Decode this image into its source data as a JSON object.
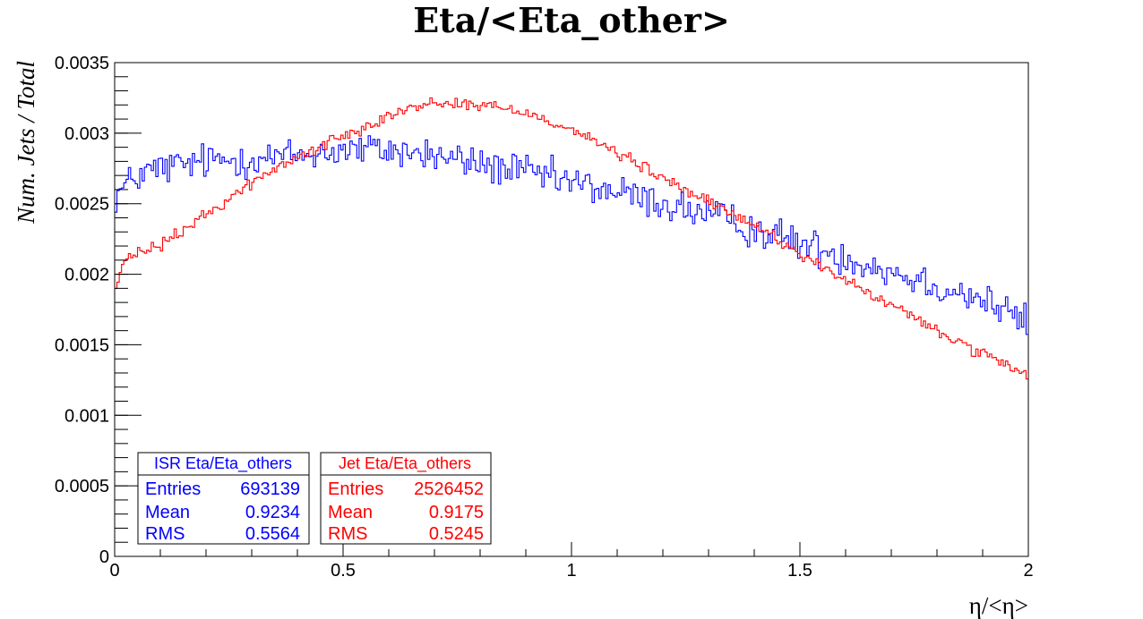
{
  "chart_data": {
    "type": "line",
    "title": "Eta/<Eta_other>",
    "xlabel": "η/<η>",
    "ylabel": "Num. Jets / Total",
    "xlim": [
      0,
      2
    ],
    "ylim": [
      0,
      0.0035
    ],
    "x_ticks": [
      {
        "value": 0,
        "label": "0"
      },
      {
        "value": 0.5,
        "label": "0.5"
      },
      {
        "value": 1,
        "label": "1"
      },
      {
        "value": 1.5,
        "label": "1.5"
      },
      {
        "value": 2,
        "label": "2"
      }
    ],
    "y_ticks": [
      {
        "value": 0,
        "label": "0"
      },
      {
        "value": 0.0005,
        "label": "0.0005"
      },
      {
        "value": 0.001,
        "label": "0.001"
      },
      {
        "value": 0.0015,
        "label": "0.0015"
      },
      {
        "value": 0.002,
        "label": "0.002"
      },
      {
        "value": 0.0025,
        "label": "0.0025"
      },
      {
        "value": 0.003,
        "label": "0.003"
      },
      {
        "value": 0.0035,
        "label": "0.0035"
      }
    ],
    "histogram": true,
    "bins": 400,
    "bin_width": 0.005,
    "grid": false,
    "series": [
      {
        "name": "ISR Eta/Eta_others",
        "color": "#0000ff",
        "shape_x": [
          0,
          0.05,
          0.1,
          0.2,
          0.3,
          0.4,
          0.5,
          0.6,
          0.7,
          0.8,
          0.9,
          1.0,
          1.1,
          1.2,
          1.3,
          1.4,
          1.5,
          1.6,
          1.7,
          1.8,
          1.9,
          2.0
        ],
        "shape_y": [
          0.00255,
          0.0027,
          0.00275,
          0.0028,
          0.00282,
          0.00284,
          0.00288,
          0.00288,
          0.00284,
          0.00278,
          0.00272,
          0.00265,
          0.00258,
          0.0025,
          0.00242,
          0.00232,
          0.00222,
          0.00212,
          0.00202,
          0.00192,
          0.00182,
          0.00165
        ],
        "noise_amplitude": 0.00012,
        "stats": {
          "Entries": "693139",
          "Mean": "0.9234",
          "RMS": "0.5564"
        }
      },
      {
        "name": "Jet Eta/Eta_others",
        "color": "#ff0000",
        "shape_x": [
          0,
          0.02,
          0.05,
          0.1,
          0.2,
          0.3,
          0.4,
          0.5,
          0.6,
          0.7,
          0.8,
          0.9,
          1.0,
          1.1,
          1.2,
          1.3,
          1.4,
          1.5,
          1.6,
          1.7,
          1.8,
          1.9,
          2.0
        ],
        "shape_y": [
          0.00188,
          0.00208,
          0.00215,
          0.0022,
          0.00242,
          0.00265,
          0.00283,
          0.00298,
          0.00313,
          0.00322,
          0.0032,
          0.00315,
          0.00303,
          0.00286,
          0.00268,
          0.00251,
          0.00235,
          0.00215,
          0.00195,
          0.00178,
          0.0016,
          0.00143,
          0.00127
        ],
        "noise_amplitude": 4e-05,
        "stats": {
          "Entries": "2526452",
          "Mean": "0.9175",
          "RMS": "0.5245"
        }
      }
    ]
  },
  "stats_labels": {
    "entries": "Entries",
    "mean": "Mean",
    "rms": "RMS"
  }
}
